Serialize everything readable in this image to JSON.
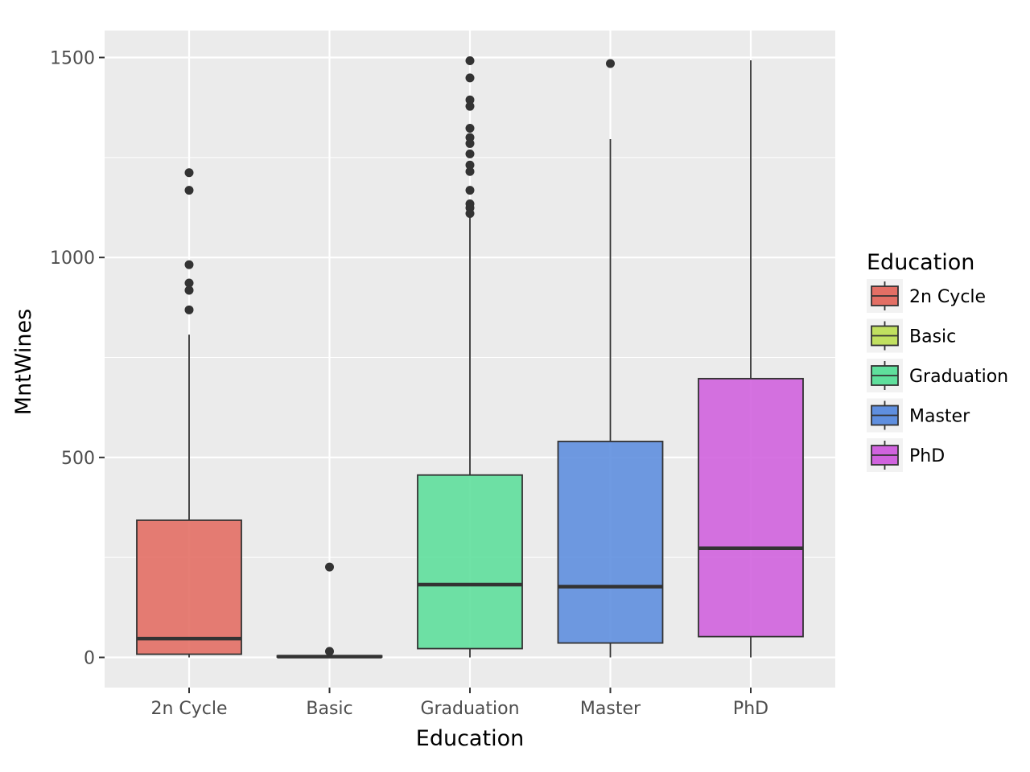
{
  "chart_data": {
    "type": "boxplot",
    "xlabel": "Education",
    "ylabel": "MntWines",
    "ylim": [
      -75,
      1570
    ],
    "yticks": [
      0,
      500,
      1000,
      1500
    ],
    "ytick_labels": [
      "0",
      "500",
      "1000",
      "1500"
    ],
    "minor_grid_y": [
      250,
      750,
      1250
    ],
    "grid": true,
    "background": "#ebebeb",
    "legend": {
      "title": "Education",
      "position": "right"
    },
    "categories": [
      "2n Cycle",
      "Basic",
      "Graduation",
      "Master",
      "PhD"
    ],
    "boxes": [
      {
        "category": "2n Cycle",
        "color": "#e36f65",
        "whisker_low": 0,
        "q1": 8,
        "median": 47,
        "q3": 343,
        "whisker_high": 807,
        "outliers": [
          1212,
          1168,
          982,
          936,
          918,
          869
        ]
      },
      {
        "category": "Basic",
        "color": "#c1e060",
        "whisker_low": 0,
        "q1": 1,
        "median": 2,
        "q3": 4,
        "whisker_high": 4,
        "outliers": [
          226,
          15
        ]
      },
      {
        "category": "Graduation",
        "color": "#5fdf9c",
        "whisker_low": 0,
        "q1": 22,
        "median": 182,
        "q3": 456,
        "whisker_high": 1108,
        "outliers": [
          1492,
          1449,
          1394,
          1378,
          1323,
          1300,
          1285,
          1259,
          1231,
          1215,
          1168,
          1134,
          1124,
          1110
        ]
      },
      {
        "category": "Master",
        "color": "#5f8fdf",
        "whisker_low": 0,
        "q1": 36,
        "median": 177,
        "q3": 540,
        "whisker_high": 1296,
        "outliers": [
          1485
        ]
      },
      {
        "category": "PhD",
        "color": "#d063de",
        "whisker_low": 0,
        "q1": 52,
        "median": 273,
        "q3": 697,
        "whisker_high": 1493,
        "outliers": []
      }
    ]
  }
}
